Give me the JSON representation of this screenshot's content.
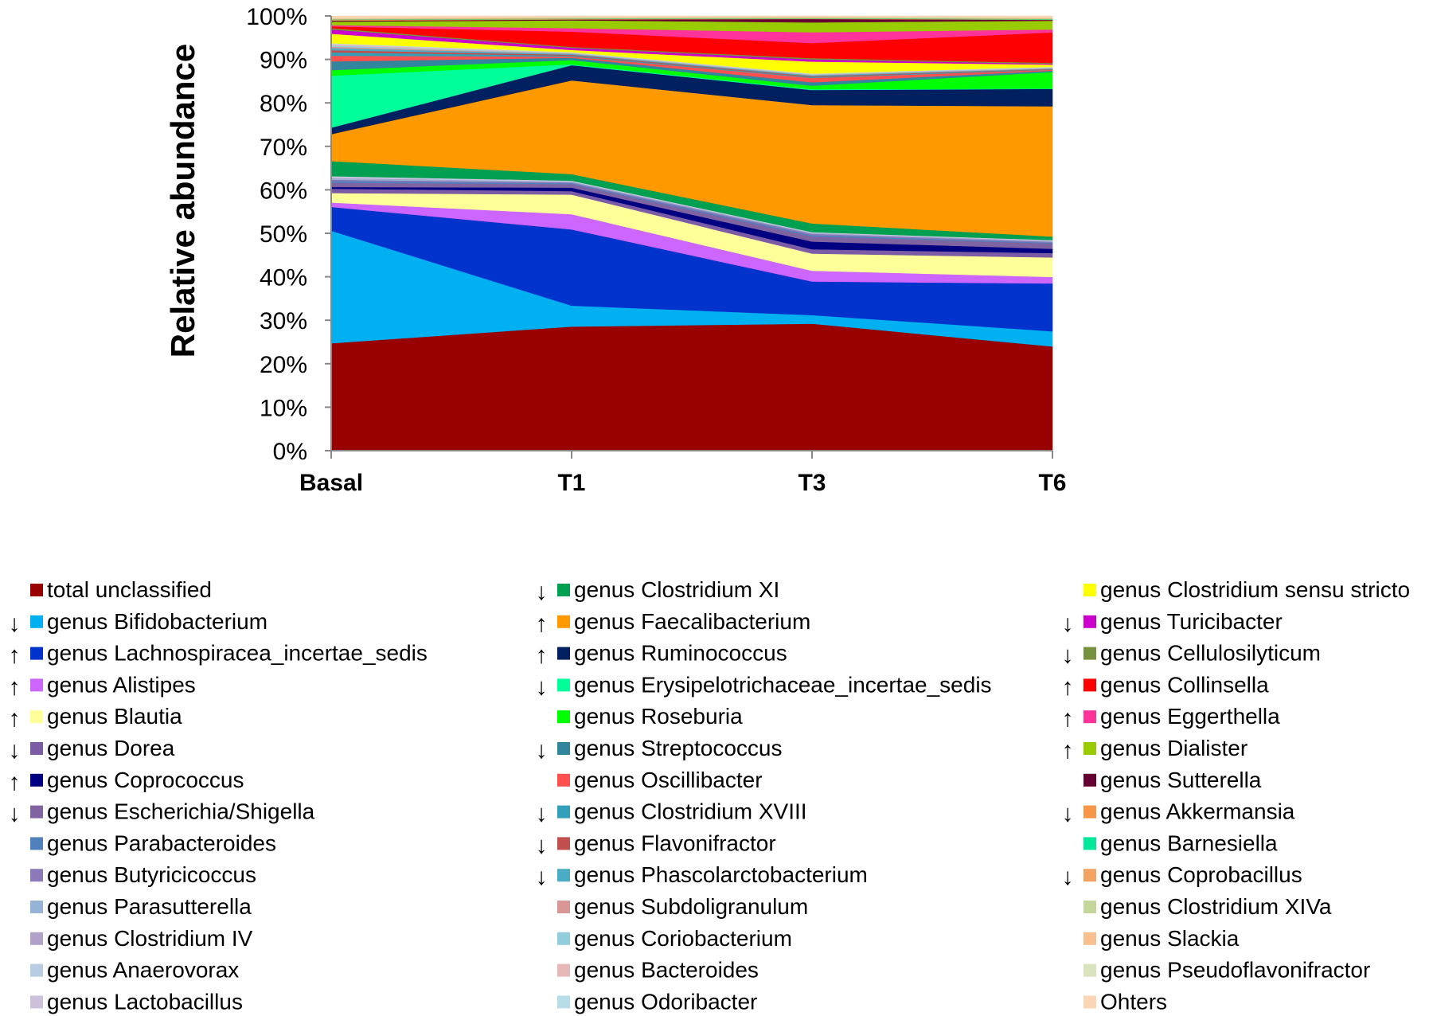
{
  "chart_data": {
    "type": "area",
    "stacked": true,
    "normalized_percent": true,
    "title": "",
    "xlabel": "",
    "ylabel": "Relative abundance",
    "ylim": [
      0,
      100
    ],
    "yticks": [
      "0%",
      "10%",
      "20%",
      "30%",
      "40%",
      "50%",
      "60%",
      "70%",
      "80%",
      "90%",
      "100%"
    ],
    "categories": [
      "Basal",
      "T1",
      "T3",
      "T6"
    ],
    "legend_position": "bottom",
    "series": [
      {
        "name": "total unclassified",
        "color": "#990000",
        "arrow": "",
        "values": [
          24.8,
          28.5,
          29.5,
          24.0
        ]
      },
      {
        "name": "genus Bifidobacterium",
        "color": "#00b0f0",
        "arrow": "down",
        "values": [
          26.0,
          4.8,
          2.0,
          3.5
        ]
      },
      {
        "name": "genus Lachnospiracea_incertae_sedis",
        "color": "#0033cc",
        "arrow": "up",
        "values": [
          5.5,
          17.5,
          7.8,
          11.0
        ]
      },
      {
        "name": "genus Alistipes",
        "color": "#cc66ff",
        "arrow": "up",
        "values": [
          1.0,
          3.5,
          2.5,
          1.5
        ]
      },
      {
        "name": "genus Blautia",
        "color": "#ffff99",
        "arrow": "up",
        "values": [
          2.2,
          4.5,
          4.0,
          4.5
        ]
      },
      {
        "name": "genus Dorea",
        "color": "#7b5aa6",
        "arrow": "down",
        "values": [
          1.0,
          0.8,
          1.0,
          1.0
        ]
      },
      {
        "name": "genus Coprococcus",
        "color": "#000080",
        "arrow": "up",
        "values": [
          0.4,
          0.8,
          1.8,
          1.0
        ]
      },
      {
        "name": "genus Escherichia/Shigella",
        "color": "#8064a2",
        "arrow": "down",
        "values": [
          1.0,
          0.8,
          1.2,
          1.2
        ]
      },
      {
        "name": "genus Parabacteroides",
        "color": "#4f81bd",
        "arrow": "",
        "values": [
          0.4,
          0.2,
          0.3,
          0.2
        ]
      },
      {
        "name": "genus Butyricicoccus",
        "color": "#8c7ab8",
        "arrow": "",
        "values": [
          0.3,
          0.2,
          0.3,
          0.2
        ]
      },
      {
        "name": "genus Parasutterella",
        "color": "#95b3d7",
        "arrow": "",
        "values": [
          0.2,
          0.1,
          0.1,
          0.1
        ]
      },
      {
        "name": "genus Clostridium IV",
        "color": "#b1a0c7",
        "arrow": "",
        "values": [
          0.2,
          0.1,
          0.1,
          0.1
        ]
      },
      {
        "name": "genus Anaerovorax",
        "color": "#b8cce4",
        "arrow": "",
        "values": [
          0.2,
          0.1,
          0.1,
          0.1
        ]
      },
      {
        "name": "genus Lactobacillus",
        "color": "#ccc0da",
        "arrow": "",
        "values": [
          0.2,
          0.1,
          0.1,
          0.1
        ]
      },
      {
        "name": "genus Clostridium XI",
        "color": "#00a050",
        "arrow": "down",
        "values": [
          3.5,
          1.5,
          2.0,
          0.8
        ]
      },
      {
        "name": "genus Faecalibacterium",
        "color": "#ff9900",
        "arrow": "up",
        "values": [
          6.2,
          21.5,
          27.5,
          30.0
        ]
      },
      {
        "name": "genus Ruminococcus",
        "color": "#002060",
        "arrow": "up",
        "values": [
          1.5,
          3.5,
          3.5,
          4.0
        ]
      },
      {
        "name": "genus Erysipelotrichaceae_incertae_sedis",
        "color": "#00ff99",
        "arrow": "down",
        "values": [
          12.0,
          0.2,
          0.2,
          0.1
        ]
      },
      {
        "name": "genus Roseburia",
        "color": "#00ff00",
        "arrow": "",
        "values": [
          1.3,
          1.0,
          0.8,
          3.8
        ]
      },
      {
        "name": "genus Streptococcus",
        "color": "#31859c",
        "arrow": "down",
        "values": [
          2.0,
          0.5,
          0.8,
          0.3
        ]
      },
      {
        "name": "genus Oscillibacter",
        "color": "#ff5050",
        "arrow": "",
        "values": [
          1.3,
          0.3,
          1.0,
          0.2
        ]
      },
      {
        "name": "genus Clostridium XVIII",
        "color": "#31a0b8",
        "arrow": "down",
        "values": [
          0.8,
          0.2,
          0.2,
          0.1
        ]
      },
      {
        "name": "genus Flavonifractor",
        "color": "#c0504d",
        "arrow": "down",
        "values": [
          0.5,
          0.2,
          0.2,
          0.1
        ]
      },
      {
        "name": "genus Phascolarctobacterium",
        "color": "#4bacc6",
        "arrow": "down",
        "values": [
          0.5,
          0.2,
          0.2,
          0.1
        ]
      },
      {
        "name": "genus Subdoligranulum",
        "color": "#d99694",
        "arrow": "",
        "values": [
          0.3,
          0.1,
          0.1,
          0.1
        ]
      },
      {
        "name": "genus Coriobacterium",
        "color": "#92cddc",
        "arrow": "",
        "values": [
          0.3,
          0.1,
          0.1,
          0.1
        ]
      },
      {
        "name": "genus Bacteroides",
        "color": "#e6b9b8",
        "arrow": "",
        "values": [
          0.3,
          0.1,
          0.1,
          0.1
        ]
      },
      {
        "name": "genus Odoribacter",
        "color": "#b7dee8",
        "arrow": "",
        "values": [
          0.2,
          0.1,
          0.1,
          0.1
        ]
      },
      {
        "name": "genus Clostridium sensu stricto",
        "color": "#ffff00",
        "arrow": "",
        "values": [
          2.2,
          0.5,
          2.8,
          0.5
        ]
      },
      {
        "name": "genus Turicibacter",
        "color": "#cc00cc",
        "arrow": "down",
        "values": [
          1.0,
          0.5,
          0.5,
          0.2
        ]
      },
      {
        "name": "genus Cellulosilyticum",
        "color": "#76923c",
        "arrow": "down",
        "values": [
          0.3,
          0.2,
          0.3,
          0.2
        ]
      },
      {
        "name": "genus Collinsella",
        "color": "#ff0000",
        "arrow": "up",
        "values": [
          0.4,
          3.5,
          3.5,
          7.0
        ]
      },
      {
        "name": "genus Eggerthella",
        "color": "#ff3399",
        "arrow": "up",
        "values": [
          0.3,
          0.8,
          2.5,
          0.7
        ]
      },
      {
        "name": "genus Dialister",
        "color": "#99cc00",
        "arrow": "up",
        "values": [
          0.8,
          1.8,
          2.3,
          2.0
        ]
      },
      {
        "name": "genus Sutterella",
        "color": "#660033",
        "arrow": "",
        "values": [
          0.2,
          0.2,
          0.8,
          0.2
        ]
      },
      {
        "name": "genus Akkermansia",
        "color": "#f79646",
        "arrow": "down",
        "values": [
          0.2,
          0.1,
          0.1,
          0.1
        ]
      },
      {
        "name": "genus Barnesiella",
        "color": "#00e89a",
        "arrow": "",
        "values": [
          0.1,
          0.1,
          0.1,
          0.1
        ]
      },
      {
        "name": "genus Coprobacillus",
        "color": "#f4a460",
        "arrow": "down",
        "values": [
          0.1,
          0.1,
          0.1,
          0.1
        ]
      },
      {
        "name": "genus Clostridium XIVa",
        "color": "#c4d79b",
        "arrow": "",
        "values": [
          0.1,
          0.1,
          0.1,
          0.1
        ]
      },
      {
        "name": "genus Slackia",
        "color": "#fabf8f",
        "arrow": "",
        "values": [
          0.1,
          0.1,
          0.1,
          0.1
        ]
      },
      {
        "name": "genus Pseudoflavonifractor",
        "color": "#d8e4bc",
        "arrow": "",
        "values": [
          0.1,
          0.1,
          0.1,
          0.1
        ]
      },
      {
        "name": "Ohters",
        "color": "#fcd5b4",
        "arrow": "",
        "values": [
          0.4,
          0.2,
          0.1,
          0.3
        ]
      }
    ]
  }
}
